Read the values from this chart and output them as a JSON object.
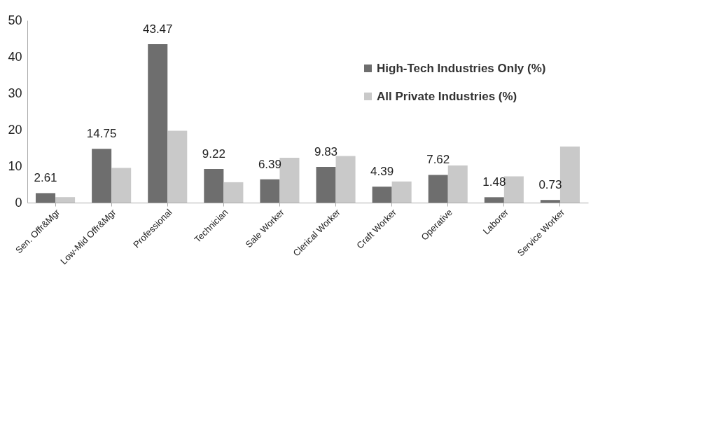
{
  "chart_data": {
    "type": "bar",
    "categories": [
      "Sen. Offr&Mgr",
      "Low-Mid Offr&Mgr",
      "Professional",
      "Technician",
      "Sale Worker",
      "Clerical Worker",
      "Craft Worker",
      "Operative",
      "Laborer",
      "Service Worker"
    ],
    "series": [
      {
        "name": "High-Tech Industries Only (%)",
        "color": "#6e6e6e",
        "values": [
          2.61,
          14.75,
          43.47,
          9.22,
          6.39,
          9.83,
          4.39,
          7.62,
          1.48,
          0.73
        ],
        "value_labels": [
          "2.61",
          "14.75",
          "43.47",
          "9.22",
          "6.39",
          "9.83",
          "4.39",
          "7.62",
          "1.48",
          "0.73"
        ]
      },
      {
        "name": "All Private Industries (%)",
        "color": "#c9c9c9",
        "values": [
          1.5,
          9.5,
          19.7,
          5.6,
          12.3,
          12.8,
          5.8,
          10.2,
          7.2,
          15.4
        ]
      }
    ],
    "ylim": [
      0,
      50
    ],
    "yticks": [
      0,
      10,
      20,
      30,
      40,
      50
    ],
    "grid": false,
    "legend": "top right"
  }
}
